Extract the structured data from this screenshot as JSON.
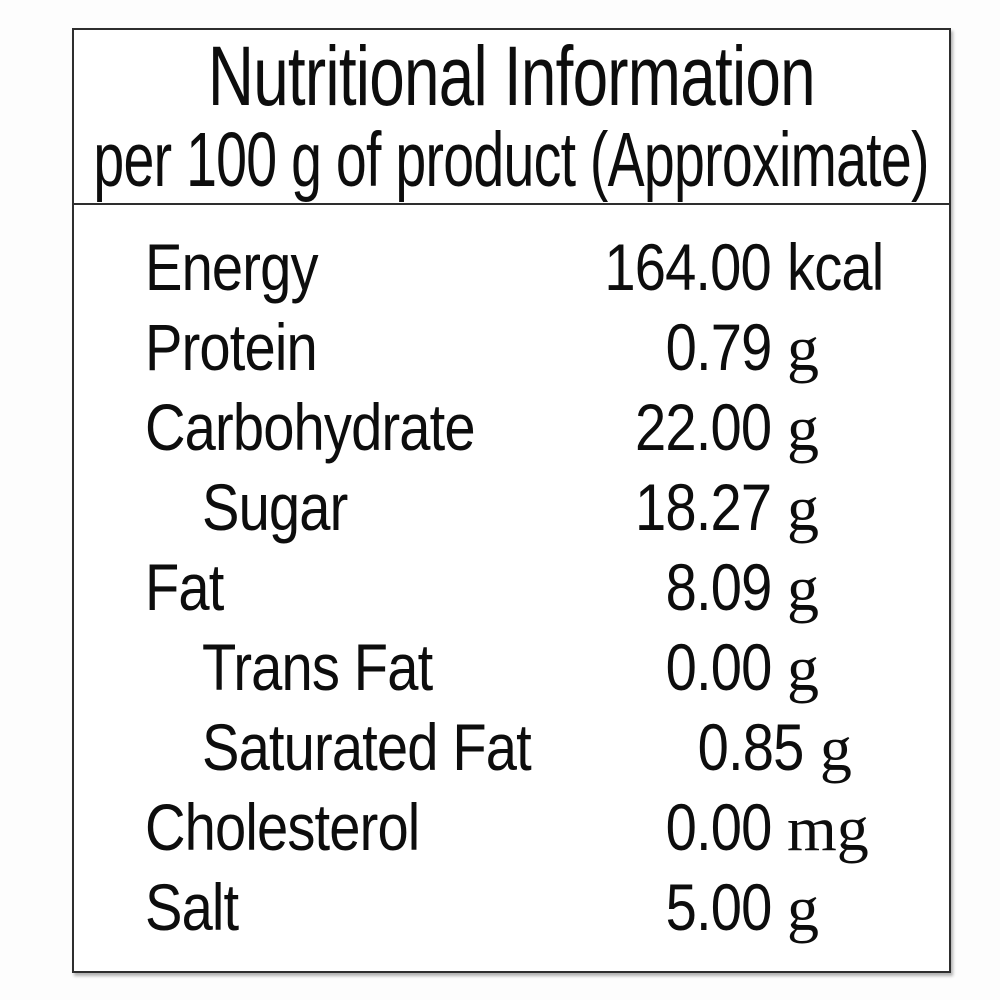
{
  "header": {
    "title": "Nutritional Information",
    "subtitle": "per 100 g of product (Approximate)"
  },
  "rows": [
    {
      "label": "Energy",
      "value": "164.00",
      "unit": "kcal",
      "indent": false
    },
    {
      "label": "Protein",
      "value": "0.79",
      "unit": "g",
      "indent": false
    },
    {
      "label": "Carbohydrate",
      "value": "22.00",
      "unit": "g",
      "indent": false
    },
    {
      "label": "Sugar",
      "value": "18.27",
      "unit": "g",
      "indent": true
    },
    {
      "label": "Fat",
      "value": "8.09",
      "unit": "g",
      "indent": false
    },
    {
      "label": "Trans Fat",
      "value": "0.00",
      "unit": "g",
      "indent": true
    },
    {
      "label": "Saturated Fat",
      "value": "0.85",
      "unit": "g",
      "indent": true
    },
    {
      "label": "Cholesterol",
      "value": "0.00",
      "unit": "mg",
      "indent": false
    },
    {
      "label": "Salt",
      "value": "5.00",
      "unit": "g",
      "indent": false
    }
  ],
  "colors": {
    "text": "#0d0d0d",
    "border": "#2e2e2e",
    "background": "#ffffff"
  }
}
